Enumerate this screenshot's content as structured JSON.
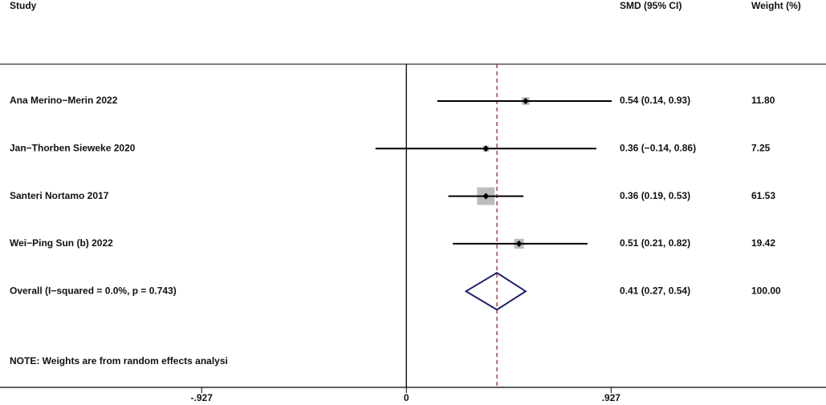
{
  "chart_data": {
    "type": "forest",
    "headers": {
      "study": "Study",
      "effect": "SMD (95% CI)",
      "weight": "Weight (%)"
    },
    "categories": [
      "Ana Merino−Merin 2022",
      "Jan−Thorben Sieweke 2020",
      "Santeri Nortamo 2017",
      "Wei−Ping Sun (b) 2022"
    ],
    "values": [
      0.54,
      0.36,
      0.36,
      0.51
    ],
    "lower": [
      0.14,
      -0.14,
      0.19,
      0.21
    ],
    "upper": [
      0.93,
      0.86,
      0.53,
      0.82
    ],
    "value_labels": [
      "0.54 (0.14, 0.93)",
      "0.36 (−0.14, 0.86)",
      "0.36 (0.19, 0.53)",
      "0.51 (0.21, 0.82)"
    ],
    "weights": {
      "values": [
        11.8,
        7.25,
        61.53,
        19.42
      ],
      "value_labels": [
        "11.80",
        "7.25",
        "61.53",
        "19.42"
      ]
    },
    "overall": {
      "label": "Overall  (I−squared = 0.0%, p = 0.743)",
      "value": 0.41,
      "lower": 0.27,
      "upper": 0.54,
      "value_label": "0.41 (0.27, 0.54)",
      "weight": 100,
      "weight_label": "100.00"
    },
    "note": "NOTE: Weights are from random effects analysi",
    "xlim": [
      -1.84,
      1.9
    ],
    "xticks": [
      {
        "value": -0.927,
        "label": "-.927"
      },
      0,
      {
        "value": 0.927,
        "label": ".927"
      }
    ],
    "box_color": "#bdbdbd",
    "diamond_color": "#1b2170",
    "overall_line_color": "#a3282c"
  }
}
